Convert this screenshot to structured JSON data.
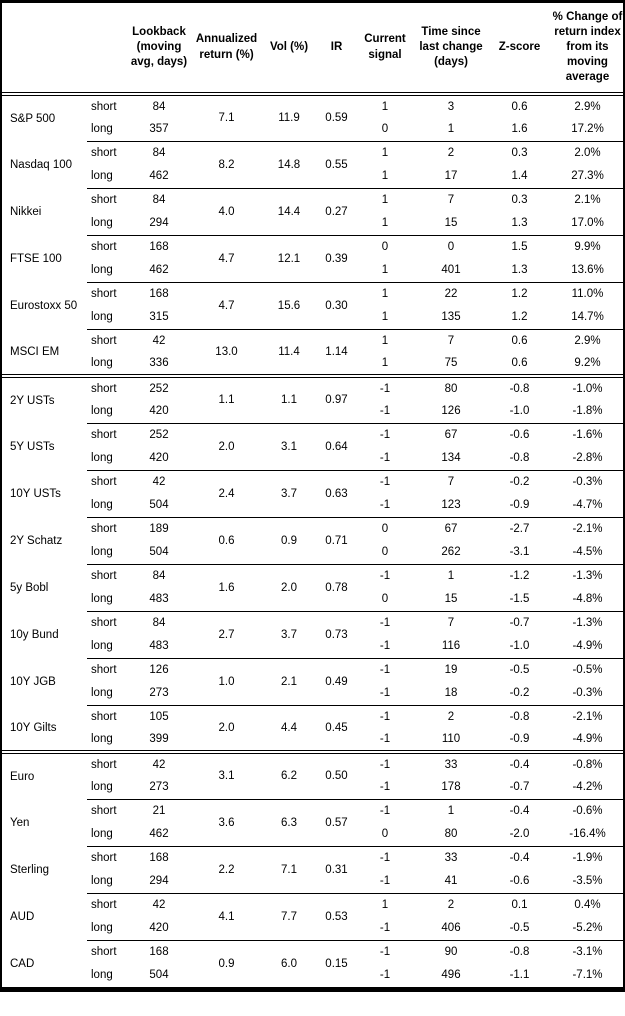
{
  "table": {
    "columns": {
      "instrument": "",
      "leg": "",
      "lookback": "Lookback\n(moving\navg, days)",
      "annualized_return": "Annualized\nreturn (%)",
      "vol": "Vol (%)",
      "ir": "IR",
      "current_signal": "Current\nsignal",
      "time_since": "Time since\nlast change\n(days)",
      "z_score": "Z-score",
      "pct_change": "% Change of\nreturn index\nfrom its\nmoving\naverage"
    },
    "sections": [
      {
        "groups": [
          {
            "name": "S&P 500",
            "annualized_return": "7.1",
            "vol": "11.9",
            "ir": "0.59",
            "rows": [
              {
                "leg": "short",
                "lookback": "84",
                "signal": "1",
                "time_since": "3",
                "z_score": "0.6",
                "pct_change": "2.9%"
              },
              {
                "leg": "long",
                "lookback": "357",
                "signal": "0",
                "time_since": "1",
                "z_score": "1.6",
                "pct_change": "17.2%"
              }
            ]
          },
          {
            "name": "Nasdaq 100",
            "annualized_return": "8.2",
            "vol": "14.8",
            "ir": "0.55",
            "rows": [
              {
                "leg": "short",
                "lookback": "84",
                "signal": "1",
                "time_since": "2",
                "z_score": "0.3",
                "pct_change": "2.0%"
              },
              {
                "leg": "long",
                "lookback": "462",
                "signal": "1",
                "time_since": "17",
                "z_score": "1.4",
                "pct_change": "27.3%"
              }
            ]
          },
          {
            "name": "Nikkei",
            "annualized_return": "4.0",
            "vol": "14.4",
            "ir": "0.27",
            "rows": [
              {
                "leg": "short",
                "lookback": "84",
                "signal": "1",
                "time_since": "7",
                "z_score": "0.3",
                "pct_change": "2.1%"
              },
              {
                "leg": "long",
                "lookback": "294",
                "signal": "1",
                "time_since": "15",
                "z_score": "1.3",
                "pct_change": "17.0%"
              }
            ]
          },
          {
            "name": "FTSE 100",
            "annualized_return": "4.7",
            "vol": "12.1",
            "ir": "0.39",
            "rows": [
              {
                "leg": "short",
                "lookback": "168",
                "signal": "0",
                "time_since": "0",
                "z_score": "1.5",
                "pct_change": "9.9%"
              },
              {
                "leg": "long",
                "lookback": "462",
                "signal": "1",
                "time_since": "401",
                "z_score": "1.3",
                "pct_change": "13.6%"
              }
            ]
          },
          {
            "name": "Eurostoxx 50",
            "annualized_return": "4.7",
            "vol": "15.6",
            "ir": "0.30",
            "rows": [
              {
                "leg": "short",
                "lookback": "168",
                "signal": "1",
                "time_since": "22",
                "z_score": "1.2",
                "pct_change": "11.0%"
              },
              {
                "leg": "long",
                "lookback": "315",
                "signal": "1",
                "time_since": "135",
                "z_score": "1.2",
                "pct_change": "14.7%"
              }
            ]
          },
          {
            "name": "MSCI EM",
            "annualized_return": "13.0",
            "vol": "11.4",
            "ir": "1.14",
            "rows": [
              {
                "leg": "short",
                "lookback": "42",
                "signal": "1",
                "time_since": "7",
                "z_score": "0.6",
                "pct_change": "2.9%"
              },
              {
                "leg": "long",
                "lookback": "336",
                "signal": "1",
                "time_since": "75",
                "z_score": "0.6",
                "pct_change": "9.2%"
              }
            ]
          }
        ]
      },
      {
        "groups": [
          {
            "name": "2Y USTs",
            "annualized_return": "1.1",
            "vol": "1.1",
            "ir": "0.97",
            "rows": [
              {
                "leg": "short",
                "lookback": "252",
                "signal": "-1",
                "time_since": "80",
                "z_score": "-0.8",
                "pct_change": "-1.0%"
              },
              {
                "leg": "long",
                "lookback": "420",
                "signal": "-1",
                "time_since": "126",
                "z_score": "-1.0",
                "pct_change": "-1.8%"
              }
            ]
          },
          {
            "name": "5Y USTs",
            "annualized_return": "2.0",
            "vol": "3.1",
            "ir": "0.64",
            "rows": [
              {
                "leg": "short",
                "lookback": "252",
                "signal": "-1",
                "time_since": "67",
                "z_score": "-0.6",
                "pct_change": "-1.6%"
              },
              {
                "leg": "long",
                "lookback": "420",
                "signal": "-1",
                "time_since": "134",
                "z_score": "-0.8",
                "pct_change": "-2.8%"
              }
            ]
          },
          {
            "name": "10Y USTs",
            "annualized_return": "2.4",
            "vol": "3.7",
            "ir": "0.63",
            "rows": [
              {
                "leg": "short",
                "lookback": "42",
                "signal": "-1",
                "time_since": "7",
                "z_score": "-0.2",
                "pct_change": "-0.3%"
              },
              {
                "leg": "long",
                "lookback": "504",
                "signal": "-1",
                "time_since": "123",
                "z_score": "-0.9",
                "pct_change": "-4.7%"
              }
            ]
          },
          {
            "name": "2Y Schatz",
            "annualized_return": "0.6",
            "vol": "0.9",
            "ir": "0.71",
            "rows": [
              {
                "leg": "short",
                "lookback": "189",
                "signal": "0",
                "time_since": "67",
                "z_score": "-2.7",
                "pct_change": "-2.1%"
              },
              {
                "leg": "long",
                "lookback": "504",
                "signal": "0",
                "time_since": "262",
                "z_score": "-3.1",
                "pct_change": "-4.5%"
              }
            ]
          },
          {
            "name": "5y Bobl",
            "annualized_return": "1.6",
            "vol": "2.0",
            "ir": "0.78",
            "rows": [
              {
                "leg": "short",
                "lookback": "84",
                "signal": "-1",
                "time_since": "1",
                "z_score": "-1.2",
                "pct_change": "-1.3%"
              },
              {
                "leg": "long",
                "lookback": "483",
                "signal": "0",
                "time_since": "15",
                "z_score": "-1.5",
                "pct_change": "-4.8%"
              }
            ]
          },
          {
            "name": "10y Bund",
            "annualized_return": "2.7",
            "vol": "3.7",
            "ir": "0.73",
            "rows": [
              {
                "leg": "short",
                "lookback": "84",
                "signal": "-1",
                "time_since": "7",
                "z_score": "-0.7",
                "pct_change": "-1.3%"
              },
              {
                "leg": "long",
                "lookback": "483",
                "signal": "-1",
                "time_since": "116",
                "z_score": "-1.0",
                "pct_change": "-4.9%"
              }
            ]
          },
          {
            "name": "10Y JGB",
            "annualized_return": "1.0",
            "vol": "2.1",
            "ir": "0.49",
            "rows": [
              {
                "leg": "short",
                "lookback": "126",
                "signal": "-1",
                "time_since": "19",
                "z_score": "-0.5",
                "pct_change": "-0.5%"
              },
              {
                "leg": "long",
                "lookback": "273",
                "signal": "-1",
                "time_since": "18",
                "z_score": "-0.2",
                "pct_change": "-0.3%"
              }
            ]
          },
          {
            "name": "10Y Gilts",
            "annualized_return": "2.0",
            "vol": "4.4",
            "ir": "0.45",
            "rows": [
              {
                "leg": "short",
                "lookback": "105",
                "signal": "-1",
                "time_since": "2",
                "z_score": "-0.8",
                "pct_change": "-2.1%"
              },
              {
                "leg": "long",
                "lookback": "399",
                "signal": "-1",
                "time_since": "110",
                "z_score": "-0.9",
                "pct_change": "-4.9%"
              }
            ]
          }
        ]
      },
      {
        "groups": [
          {
            "name": "Euro",
            "annualized_return": "3.1",
            "vol": "6.2",
            "ir": "0.50",
            "rows": [
              {
                "leg": "short",
                "lookback": "42",
                "signal": "-1",
                "time_since": "33",
                "z_score": "-0.4",
                "pct_change": "-0.8%"
              },
              {
                "leg": "long",
                "lookback": "273",
                "signal": "-1",
                "time_since": "178",
                "z_score": "-0.7",
                "pct_change": "-4.2%"
              }
            ]
          },
          {
            "name": "Yen",
            "annualized_return": "3.6",
            "vol": "6.3",
            "ir": "0.57",
            "rows": [
              {
                "leg": "short",
                "lookback": "21",
                "signal": "-1",
                "time_since": "1",
                "z_score": "-0.4",
                "pct_change": "-0.6%"
              },
              {
                "leg": "long",
                "lookback": "462",
                "signal": "0",
                "time_since": "80",
                "z_score": "-2.0",
                "pct_change": "-16.4%"
              }
            ]
          },
          {
            "name": "Sterling",
            "annualized_return": "2.2",
            "vol": "7.1",
            "ir": "0.31",
            "rows": [
              {
                "leg": "short",
                "lookback": "168",
                "signal": "-1",
                "time_since": "33",
                "z_score": "-0.4",
                "pct_change": "-1.9%"
              },
              {
                "leg": "long",
                "lookback": "294",
                "signal": "-1",
                "time_since": "41",
                "z_score": "-0.6",
                "pct_change": "-3.5%"
              }
            ]
          },
          {
            "name": "AUD",
            "annualized_return": "4.1",
            "vol": "7.7",
            "ir": "0.53",
            "rows": [
              {
                "leg": "short",
                "lookback": "42",
                "signal": "1",
                "time_since": "2",
                "z_score": "0.1",
                "pct_change": "0.4%"
              },
              {
                "leg": "long",
                "lookback": "420",
                "signal": "-1",
                "time_since": "406",
                "z_score": "-0.5",
                "pct_change": "-5.2%"
              }
            ]
          },
          {
            "name": "CAD",
            "annualized_return": "0.9",
            "vol": "6.0",
            "ir": "0.15",
            "rows": [
              {
                "leg": "short",
                "lookback": "168",
                "signal": "-1",
                "time_since": "90",
                "z_score": "-0.8",
                "pct_change": "-3.1%"
              },
              {
                "leg": "long",
                "lookback": "504",
                "signal": "-1",
                "time_since": "496",
                "z_score": "-1.1",
                "pct_change": "-7.1%"
              }
            ]
          }
        ]
      }
    ]
  }
}
